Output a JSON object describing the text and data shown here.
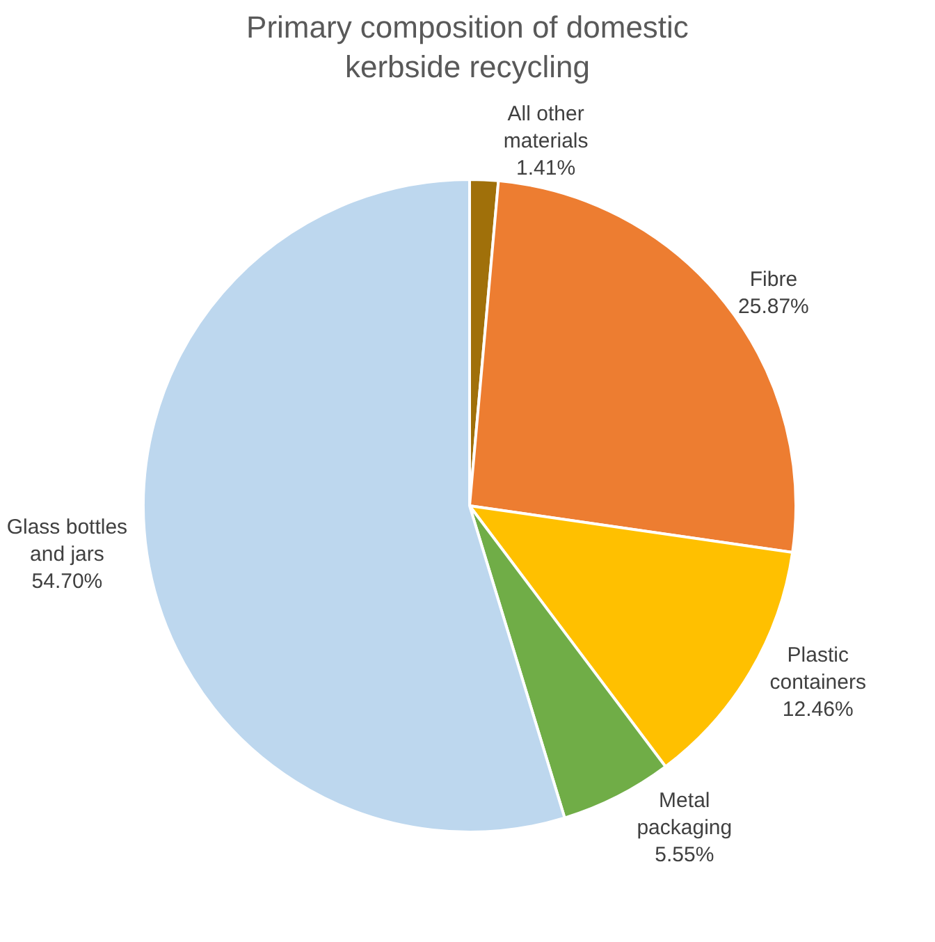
{
  "chart_data": {
    "type": "pie",
    "title": "Primary composition of domestic kerbside recycling",
    "categories": [
      "All other materials",
      "Fibre",
      "Plastic containers",
      "Metal packaging",
      "Glass bottles and jars"
    ],
    "values": [
      1.41,
      25.87,
      12.46,
      5.55,
      54.7
    ],
    "value_labels": [
      "1.41%",
      "25.87%",
      "12.46%",
      "5.55%",
      "54.70%"
    ],
    "colors": [
      "#a0700a",
      "#ed7d31",
      "#ffc000",
      "#70ad47",
      "#bdd7ee"
    ],
    "legend": false
  }
}
